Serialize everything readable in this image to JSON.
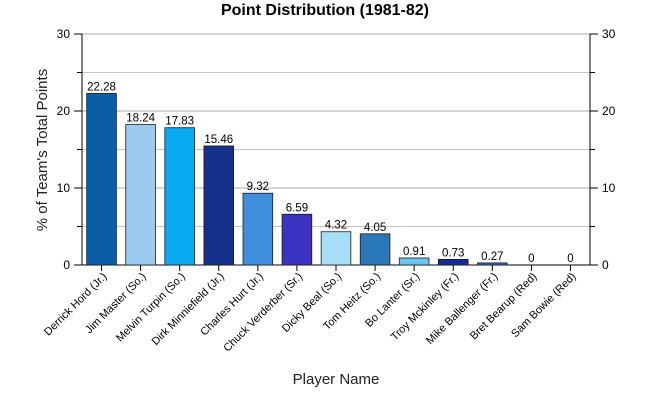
{
  "chart_data": {
    "type": "bar",
    "title": "Point Distribution (1981-82)",
    "xlabel": "Player Name",
    "ylabel": "% of Team's Total Points",
    "ylim": [
      0,
      30
    ],
    "yticks": [
      0,
      10,
      20,
      30
    ],
    "right_axis": true,
    "grid": true,
    "categories": [
      "Derrick Hord (Jr.)",
      "Jim Master (So.)",
      "Melvin Turpin (So.)",
      "Dirk Minniefield (Jr.)",
      "Charles Hurt (Jr.)",
      "Chuck Verderber (Sr.)",
      "Dicky Beal (So.)",
      "Tom Heitz (So.)",
      "Bo Lanter (Sr.)",
      "Troy Mckinley (Fr.)",
      "Mike Ballenger (Fr.)",
      "Bret Bearup (Red)",
      "Sam Bowie (Red)"
    ],
    "values": [
      22.28,
      18.24,
      17.83,
      15.46,
      9.32,
      6.59,
      4.32,
      4.05,
      0.91,
      0.73,
      0.27,
      0,
      0
    ],
    "data_labels": [
      "22.28",
      "18.24",
      "17.83",
      "15.46",
      "9.32",
      "6.59",
      "4.32",
      "4.05",
      "0.91",
      "0.73",
      "0.27",
      "0",
      "0"
    ],
    "colors": [
      "#0a5ea8",
      "#9ccbef",
      "#0aaaf0",
      "#13308a",
      "#3d8fde",
      "#3a32c0",
      "#a6def5",
      "#2a78b8",
      "#6ac6f5",
      "#102c9e",
      "#2e6fd0",
      "#7fb6e8",
      "#3a60c8"
    ]
  }
}
